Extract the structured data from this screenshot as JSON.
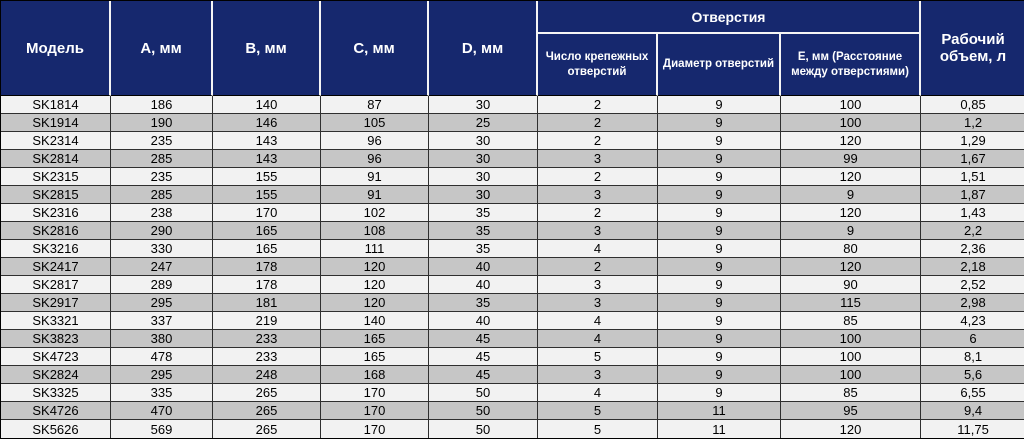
{
  "colors": {
    "header_bg": "#16286e",
    "header_divider": "#f5f5f5",
    "row_light": "#f2f2f2",
    "row_dark": "#c6c6c6",
    "grid_line": "#2f2f2f",
    "outer_border": "#000000"
  },
  "table": {
    "header": {
      "model": "Модель",
      "a": "A, мм",
      "b": "B, мм",
      "c": "C, мм",
      "d": "D, мм",
      "holes_group": "Отверстия",
      "holes_count": "Число крепежных отверстий",
      "hole_diameter": "Диаметр отверстий",
      "e_distance": "Е, мм (Расстояние между отверстиями)",
      "volume": "Рабочий объем, л"
    },
    "column_keys": [
      "model",
      "a",
      "b",
      "c",
      "d",
      "holes_count",
      "hole_diameter",
      "e_distance",
      "volume"
    ],
    "rows": [
      {
        "model": "SK1814",
        "a": "186",
        "b": "140",
        "c": "87",
        "d": "30",
        "holes_count": "2",
        "hole_diameter": "9",
        "e_distance": "100",
        "volume": "0,85"
      },
      {
        "model": "SK1914",
        "a": "190",
        "b": "146",
        "c": "105",
        "d": "25",
        "holes_count": "2",
        "hole_diameter": "9",
        "e_distance": "100",
        "volume": "1,2"
      },
      {
        "model": "SK2314",
        "a": "235",
        "b": "143",
        "c": "96",
        "d": "30",
        "holes_count": "2",
        "hole_diameter": "9",
        "e_distance": "120",
        "volume": "1,29"
      },
      {
        "model": "SK2814",
        "a": "285",
        "b": "143",
        "c": "96",
        "d": "30",
        "holes_count": "3",
        "hole_diameter": "9",
        "e_distance": "99",
        "volume": "1,67"
      },
      {
        "model": "SK2315",
        "a": "235",
        "b": "155",
        "c": "91",
        "d": "30",
        "holes_count": "2",
        "hole_diameter": "9",
        "e_distance": "120",
        "volume": "1,51"
      },
      {
        "model": "SK2815",
        "a": "285",
        "b": "155",
        "c": "91",
        "d": "30",
        "holes_count": "3",
        "hole_diameter": "9",
        "e_distance": "9",
        "volume": "1,87"
      },
      {
        "model": "SK2316",
        "a": "238",
        "b": "170",
        "c": "102",
        "d": "35",
        "holes_count": "2",
        "hole_diameter": "9",
        "e_distance": "120",
        "volume": "1,43"
      },
      {
        "model": "SK2816",
        "a": "290",
        "b": "165",
        "c": "108",
        "d": "35",
        "holes_count": "3",
        "hole_diameter": "9",
        "e_distance": "9",
        "volume": "2,2"
      },
      {
        "model": "SK3216",
        "a": "330",
        "b": "165",
        "c": "111",
        "d": "35",
        "holes_count": "4",
        "hole_diameter": "9",
        "e_distance": "80",
        "volume": "2,36"
      },
      {
        "model": "SK2417",
        "a": "247",
        "b": "178",
        "c": "120",
        "d": "40",
        "holes_count": "2",
        "hole_diameter": "9",
        "e_distance": "120",
        "volume": "2,18"
      },
      {
        "model": "SK2817",
        "a": "289",
        "b": "178",
        "c": "120",
        "d": "40",
        "holes_count": "3",
        "hole_diameter": "9",
        "e_distance": "90",
        "volume": "2,52"
      },
      {
        "model": "SK2917",
        "a": "295",
        "b": "181",
        "c": "120",
        "d": "35",
        "holes_count": "3",
        "hole_diameter": "9",
        "e_distance": "115",
        "volume": "2,98"
      },
      {
        "model": "SK3321",
        "a": "337",
        "b": "219",
        "c": "140",
        "d": "40",
        "holes_count": "4",
        "hole_diameter": "9",
        "e_distance": "85",
        "volume": "4,23"
      },
      {
        "model": "SK3823",
        "a": "380",
        "b": "233",
        "c": "165",
        "d": "45",
        "holes_count": "4",
        "hole_diameter": "9",
        "e_distance": "100",
        "volume": "6"
      },
      {
        "model": "SK4723",
        "a": "478",
        "b": "233",
        "c": "165",
        "d": "45",
        "holes_count": "5",
        "hole_diameter": "9",
        "e_distance": "100",
        "volume": "8,1"
      },
      {
        "model": "SK2824",
        "a": "295",
        "b": "248",
        "c": "168",
        "d": "45",
        "holes_count": "3",
        "hole_diameter": "9",
        "e_distance": "100",
        "volume": "5,6"
      },
      {
        "model": "SK3325",
        "a": "335",
        "b": "265",
        "c": "170",
        "d": "50",
        "holes_count": "4",
        "hole_diameter": "9",
        "e_distance": "85",
        "volume": "6,55"
      },
      {
        "model": "SK4726",
        "a": "470",
        "b": "265",
        "c": "170",
        "d": "50",
        "holes_count": "5",
        "hole_diameter": "11",
        "e_distance": "95",
        "volume": "9,4"
      },
      {
        "model": "SK5626",
        "a": "569",
        "b": "265",
        "c": "170",
        "d": "50",
        "holes_count": "5",
        "hole_diameter": "11",
        "e_distance": "120",
        "volume": "11,75"
      }
    ]
  }
}
